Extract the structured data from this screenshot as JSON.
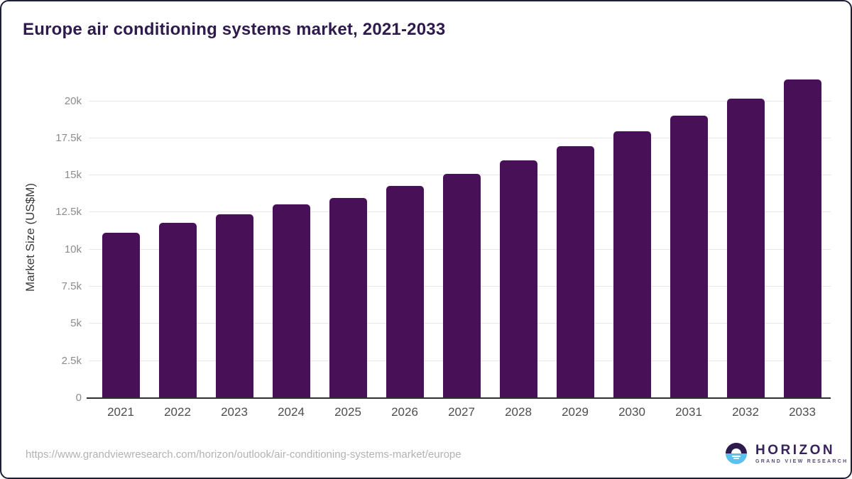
{
  "chart_data": {
    "type": "bar",
    "title": "Europe air conditioning systems market, 2021-2033",
    "xlabel": "",
    "ylabel": "Market Size (US$M)",
    "categories": [
      "2021",
      "2022",
      "2023",
      "2024",
      "2025",
      "2026",
      "2027",
      "2028",
      "2029",
      "2030",
      "2031",
      "2032",
      "2033"
    ],
    "values": [
      11150,
      11800,
      12400,
      13050,
      13480,
      14270,
      15100,
      16000,
      16990,
      17970,
      19010,
      20180,
      21460
    ],
    "ylim": [
      0,
      21700
    ],
    "yticks": {
      "values": [
        0,
        2500,
        5000,
        7500,
        10000,
        12500,
        15000,
        17500,
        20000
      ],
      "labels": [
        "0",
        "2.5k",
        "5k",
        "7.5k",
        "10k",
        "12.5k",
        "15k",
        "17.5k",
        "20k"
      ]
    },
    "grid": true,
    "legend": "none",
    "bar_color": "#481056"
  },
  "footer": {
    "source_url": "https://www.grandviewresearch.com/horizon/outlook/air-conditioning-systems-market/europe",
    "logo": {
      "brand": "HORIZON",
      "subbrand": "GRAND VIEW RESEARCH"
    }
  },
  "colors": {
    "title_text": "#2e1a4d",
    "bar": "#481056",
    "gridline": "#e7e7e7",
    "axis_line": "#2f2f2f",
    "y_tick_text": "#8c8c8c",
    "x_tick_text": "#4d4d4d",
    "url_text": "#b2b2b2",
    "logo_sky": "#2e1a4d",
    "logo_sea": "#5bc0ee"
  }
}
